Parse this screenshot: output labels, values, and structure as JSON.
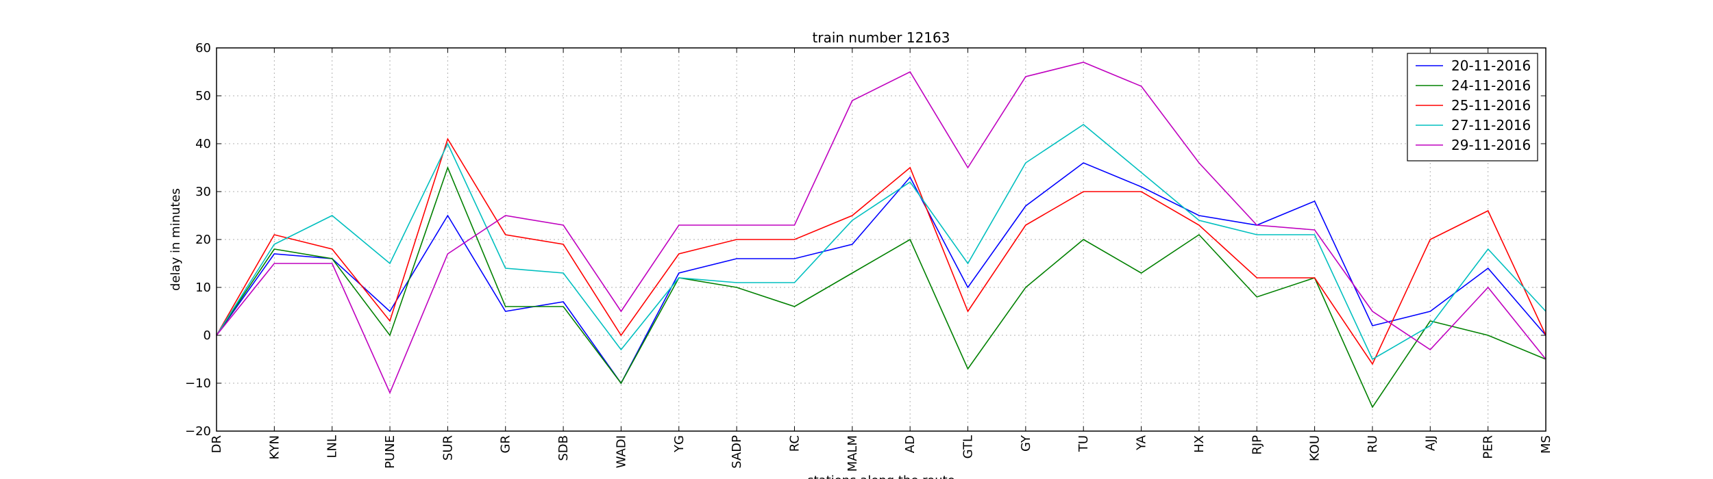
{
  "chart_data": {
    "type": "line",
    "title": "train number 12163",
    "xlabel": "stations along the route",
    "ylabel": "delay in minutes",
    "ylim": [
      -20,
      60
    ],
    "yticks": [
      "−20",
      "−10",
      "0",
      "10",
      "20",
      "30",
      "40",
      "50",
      "60"
    ],
    "grid": true,
    "legend_position": "top-right",
    "categories": [
      "DR",
      "KYN",
      "LNL",
      "PUNE",
      "SUR",
      "GR",
      "SDB",
      "WADI",
      "YG",
      "SADP",
      "RC",
      "MALM",
      "AD",
      "GTL",
      "GY",
      "TU",
      "YA",
      "HX",
      "RJP",
      "KOU",
      "RU",
      "AJJ",
      "PER",
      "MS"
    ],
    "series": [
      {
        "name": "20-11-2016",
        "color": "#0000ff",
        "values": [
          0,
          17,
          16,
          5,
          25,
          5,
          7,
          -10,
          13,
          16,
          16,
          19,
          33,
          10,
          27,
          36,
          31,
          25,
          23,
          28,
          2,
          5,
          14,
          0
        ]
      },
      {
        "name": "24-11-2016",
        "color": "#008000",
        "values": [
          0,
          18,
          16,
          0,
          35,
          6,
          6,
          -10,
          12,
          10,
          6,
          13,
          20,
          -7,
          10,
          20,
          13,
          21,
          8,
          12,
          -15,
          3,
          0,
          -5
        ]
      },
      {
        "name": "25-11-2016",
        "color": "#ff0000",
        "values": [
          0,
          21,
          18,
          3,
          41,
          21,
          19,
          0,
          17,
          20,
          20,
          25,
          35,
          5,
          23,
          30,
          30,
          23,
          12,
          12,
          -6,
          20,
          26,
          0
        ]
      },
      {
        "name": "27-11-2016",
        "color": "#00bfbf",
        "values": [
          0,
          19,
          25,
          15,
          40,
          14,
          13,
          -3,
          12,
          11,
          11,
          24,
          32,
          15,
          36,
          44,
          34,
          24,
          21,
          21,
          -5,
          2,
          18,
          5
        ]
      },
      {
        "name": "29-11-2016",
        "color": "#bf00bf",
        "values": [
          0,
          15,
          15,
          -12,
          17,
          25,
          23,
          5,
          23,
          23,
          23,
          49,
          55,
          35,
          54,
          57,
          52,
          36,
          23,
          22,
          5,
          -3,
          10,
          -5
        ]
      }
    ]
  }
}
